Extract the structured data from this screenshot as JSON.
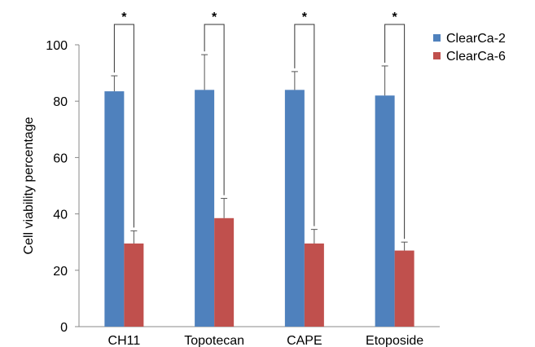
{
  "chart_data": {
    "type": "bar",
    "ylabel": "Cell viability percentage",
    "xlabel": "",
    "ylim": [
      0,
      100
    ],
    "yticks": [
      0,
      20,
      40,
      60,
      80,
      100
    ],
    "categories": [
      "CH11",
      "Topotecan",
      "CAPE",
      "Etoposide"
    ],
    "series": [
      {
        "name": "ClearCa-2",
        "color": "#4f81bd",
        "values": [
          83.5,
          84,
          84,
          82
        ],
        "errors": [
          5.5,
          12.5,
          6.5,
          10.5
        ]
      },
      {
        "name": "ClearCa-6",
        "color": "#c0504d",
        "values": [
          29.5,
          38.5,
          29.5,
          27
        ],
        "errors": [
          4.5,
          7,
          5,
          3
        ]
      }
    ],
    "significance": [
      "*",
      "*",
      "*",
      "*"
    ],
    "grid": false,
    "legend_position": "top-right"
  }
}
